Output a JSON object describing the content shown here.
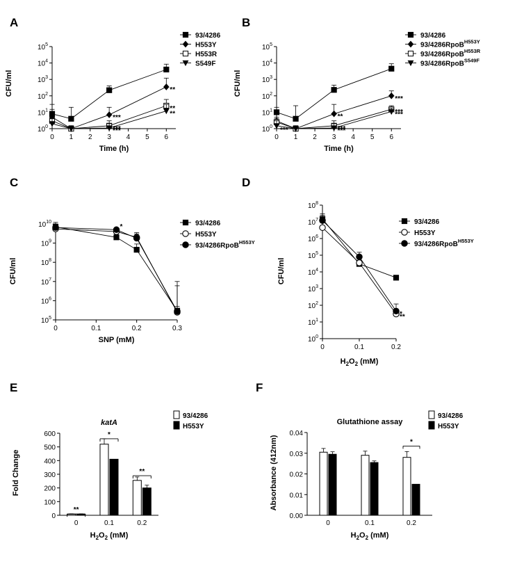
{
  "chart_data": [
    {
      "panel": "A",
      "type": "line",
      "xlabel": "Time (h)",
      "ylabel": "CFU/ml",
      "x_ticks": [
        "0",
        "1",
        "2",
        "3",
        "4",
        "5",
        "6"
      ],
      "y_ticks": [
        "10^0",
        "10^1",
        "10^2",
        "10^3",
        "10^4",
        "10^5"
      ],
      "xlim": [
        0,
        6.5
      ],
      "ylim_log10": [
        0,
        5
      ],
      "legend_position": "top-right",
      "series": [
        {
          "name": "93/4286",
          "marker": "square-filled",
          "x": [
            0,
            1,
            3,
            6
          ],
          "y": [
            8,
            4,
            220,
            4000
          ],
          "err_up": [
            30,
            20,
            400,
            8500
          ]
        },
        {
          "name": "H553Y",
          "marker": "diamond-filled",
          "x": [
            0,
            1,
            3,
            6
          ],
          "y": [
            5,
            1,
            7,
            350
          ],
          "err_up": [
            15,
            1.5,
            20,
            1200
          ]
        },
        {
          "name": "H553R",
          "marker": "square-open",
          "x": [
            0,
            1,
            3,
            6
          ],
          "y": [
            3,
            1,
            1.5,
            25
          ],
          "err_up": [
            6,
            1.5,
            3,
            60
          ]
        },
        {
          "name": "S549F",
          "marker": "triangle-down-filled",
          "x": [
            0,
            1,
            3,
            6
          ],
          "y": [
            2,
            1,
            1.1,
            12
          ],
          "err_up": [
            4,
            1.5,
            2,
            30
          ]
        }
      ],
      "annotations": [
        {
          "text": "***",
          "x": 3,
          "y": 7
        },
        {
          "text": "***",
          "x": 3,
          "y": 1.5
        },
        {
          "text": "***",
          "x": 3,
          "y": 1.1
        },
        {
          "text": "**",
          "x": 6,
          "y": 350
        },
        {
          "text": "**",
          "x": 6,
          "y": 25
        },
        {
          "text": "**",
          "x": 6,
          "y": 12
        }
      ]
    },
    {
      "panel": "B",
      "type": "line",
      "xlabel": "Time (h)",
      "ylabel": "CFU/ml",
      "x_ticks": [
        "0",
        "1",
        "2",
        "3",
        "4",
        "5",
        "6"
      ],
      "y_ticks": [
        "10^0",
        "10^1",
        "10^2",
        "10^3",
        "10^4",
        "10^5"
      ],
      "xlim": [
        0,
        6.5
      ],
      "ylim_log10": [
        0,
        5
      ],
      "legend_position": "top-right",
      "series": [
        {
          "name": "93/4286",
          "sup": "",
          "marker": "square-filled",
          "x": [
            0,
            1,
            3,
            6
          ],
          "y": [
            10,
            4,
            230,
            4500
          ],
          "err_up": [
            20,
            25,
            450,
            9000
          ]
        },
        {
          "name": "93/4286RpoB",
          "sup": "H553Y",
          "marker": "diamond-filled",
          "x": [
            0,
            1,
            3,
            6
          ],
          "y": [
            3,
            1,
            8,
            100
          ],
          "err_up": [
            5,
            1.5,
            30,
            200
          ]
        },
        {
          "name": "93/4286RpoB",
          "sup": "H553R",
          "marker": "square-open",
          "x": [
            0,
            1,
            3,
            6
          ],
          "y": [
            2.5,
            1,
            1.5,
            15
          ],
          "err_up": [
            4,
            1.5,
            3,
            25
          ]
        },
        {
          "name": "93/4286RpoB",
          "sup": "S549F",
          "marker": "triangle-down-filled",
          "x": [
            0,
            1,
            3,
            6
          ],
          "y": [
            1.5,
            1,
            1.1,
            11
          ],
          "err_up": [
            3,
            1.5,
            2,
            18
          ]
        }
      ],
      "annotations": [
        {
          "text": "***",
          "x": 0,
          "y": 1.2
        },
        {
          "text": "**",
          "x": 3,
          "y": 8
        },
        {
          "text": "***",
          "x": 3,
          "y": 1.5
        },
        {
          "text": "***",
          "x": 3,
          "y": 1.1
        },
        {
          "text": "***",
          "x": 6,
          "y": 100
        },
        {
          "text": "***",
          "x": 6,
          "y": 15
        },
        {
          "text": "***",
          "x": 6,
          "y": 11
        }
      ]
    },
    {
      "panel": "C",
      "type": "line",
      "xlabel": "SNP (mM)",
      "ylabel": "CFU/ml",
      "x_ticks": [
        "0",
        "0.1",
        "0.2",
        "0.3"
      ],
      "y_ticks": [
        "10^5",
        "10^6",
        "10^7",
        "10^8",
        "10^9",
        "10^10"
      ],
      "xlim": [
        0,
        0.3
      ],
      "ylim_log10": [
        5,
        10
      ],
      "legend_position": "right",
      "series": [
        {
          "name": "93/4286",
          "sup": "",
          "marker": "square-filled",
          "x": [
            0,
            0.15,
            0.2,
            0.3
          ],
          "y": [
            7000000000.0,
            2000000000.0,
            450000000.0,
            300000.0
          ],
          "err_up": [
            12000000000.0,
            3000000000.0,
            900000000.0,
            6000000.0
          ]
        },
        {
          "name": "H553Y",
          "sup": "",
          "marker": "circle-open",
          "x": [
            0,
            0.15,
            0.2,
            0.3
          ],
          "y": [
            5500000000.0,
            4000000000.0,
            2000000000.0,
            250000.0
          ],
          "err_up": [
            9000000000.0,
            5000000000.0,
            3000000000.0,
            500000.0
          ]
        },
        {
          "name": "93/4286RpoB",
          "sup": "H553Y",
          "marker": "circle-filled",
          "x": [
            0,
            0.15,
            0.2,
            0.3
          ],
          "y": [
            6500000000.0,
            5000000000.0,
            1800000000.0,
            280000.0
          ],
          "err_up": [
            10000000000.0,
            6000000000.0,
            3500000000.0,
            10000000.0
          ]
        }
      ],
      "annotations": [
        {
          "text": "*",
          "x": 0.15,
          "y": 10000000000.0
        }
      ]
    },
    {
      "panel": "D",
      "type": "line",
      "xlabel_base": "H",
      "xlabel_sub": "2",
      "xlabel_mid": "O",
      "xlabel_sub2": "2",
      "xlabel_rest": " (mM)",
      "ylabel": "CFU/ml",
      "x_ticks": [
        "0",
        "0.1",
        "0.2"
      ],
      "y_ticks": [
        "10^0",
        "10^1",
        "10^2",
        "10^3",
        "10^4",
        "10^5",
        "10^6",
        "10^7",
        "10^8"
      ],
      "xlim": [
        0,
        0.2
      ],
      "ylim_log10": [
        0,
        8
      ],
      "legend_position": "right",
      "series": [
        {
          "name": "93/4286",
          "sup": "",
          "marker": "square-filled",
          "x": [
            0,
            0.1,
            0.2
          ],
          "y": [
            15000000.0,
            30000.0,
            4500
          ],
          "err_up": [
            30000000.0,
            50000.0,
            6000
          ]
        },
        {
          "name": "H553Y",
          "sup": "",
          "marker": "circle-open",
          "x": [
            0,
            0.1,
            0.2
          ],
          "y": [
            4500000.0,
            35000.0,
            30
          ],
          "err_up": [
            9000000.0,
            60000.0,
            60
          ]
        },
        {
          "name": "93/4286RpoB",
          "sup": "H553Y",
          "marker": "circle-filled",
          "x": [
            0,
            0.1,
            0.2
          ],
          "y": [
            12000000.0,
            80000.0,
            45
          ],
          "err_up": [
            25000000.0,
            150000.0,
            120
          ]
        }
      ],
      "annotations": [
        {
          "text": "*",
          "x": 0.2,
          "y": 45
        },
        {
          "text": "**",
          "x": 0.2,
          "y": 30
        }
      ]
    },
    {
      "panel": "E",
      "type": "bar",
      "title": "katA",
      "xlabel_base": "H",
      "xlabel_sub": "2",
      "xlabel_mid": "O",
      "xlabel_sub2": "2",
      "xlabel_rest": " (mM)",
      "ylabel": "Fold Change",
      "categories": [
        "0",
        "0.1",
        "0.2"
      ],
      "y_ticks": [
        "0",
        "100",
        "200",
        "300",
        "400",
        "500",
        "600"
      ],
      "ylim": [
        0,
        600
      ],
      "legend_position": "top-right",
      "series": [
        {
          "name": "93/4286",
          "fill": "open",
          "values": [
            8,
            520,
            255
          ],
          "err": [
            3,
            40,
            25
          ]
        },
        {
          "name": "H553Y",
          "fill": "filled",
          "values": [
            8,
            410,
            200
          ],
          "err": [
            3,
            0,
            20
          ]
        }
      ],
      "annotations": [
        {
          "text": "**",
          "category": 0,
          "y": 40
        },
        {
          "text": "*",
          "category": 1,
          "y": 590
        },
        {
          "text": "**",
          "category": 2,
          "y": 320
        }
      ]
    },
    {
      "panel": "F",
      "type": "bar",
      "title": "Glutathione assay",
      "xlabel_base": "H",
      "xlabel_sub": "2",
      "xlabel_mid": "O",
      "xlabel_sub2": "2",
      "xlabel_rest": " (mM)",
      "ylabel": "Absorbance (412nm)",
      "categories": [
        "0",
        "0.1",
        "0.2"
      ],
      "y_ticks": [
        "0.00",
        "0.01",
        "0.02",
        "0.03",
        "0.04"
      ],
      "ylim": [
        0,
        0.04
      ],
      "legend_position": "top-right",
      "series": [
        {
          "name": "93/4286",
          "fill": "open",
          "values": [
            0.0305,
            0.029,
            0.028
          ],
          "err": [
            0.0018,
            0.002,
            0.0028
          ]
        },
        {
          "name": "H553Y",
          "fill": "filled",
          "values": [
            0.0295,
            0.0255,
            0.015
          ],
          "err": [
            0.0012,
            0.0008,
            0
          ]
        }
      ],
      "annotations": [
        {
          "text": "*",
          "category": 2,
          "y": 0.0355
        }
      ]
    }
  ]
}
